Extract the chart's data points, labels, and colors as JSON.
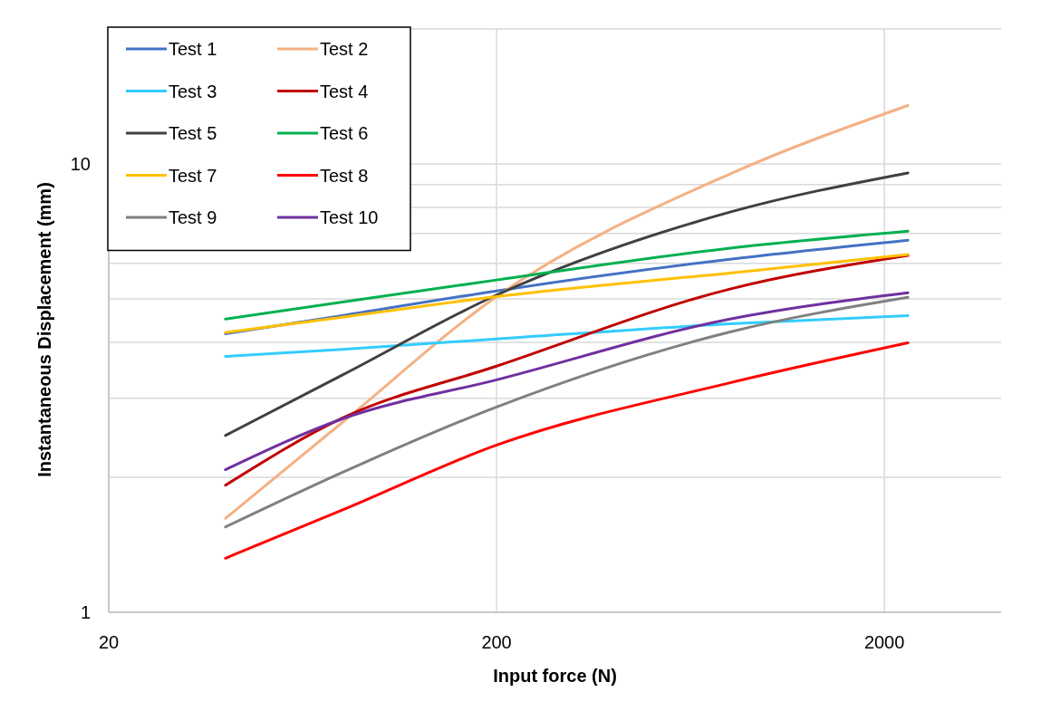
{
  "chart_data": {
    "type": "line",
    "xlabel": "Input force (N)",
    "ylabel": "Instantaneous Displacement (mm)",
    "log": "xy",
    "xlim": [
      20,
      4000
    ],
    "ylim": [
      1,
      20
    ],
    "xticks": [
      20,
      200,
      2000
    ],
    "yticks": [
      1,
      {
        "value": 2,
        "label": null
      },
      {
        "value": 3,
        "label": null
      },
      {
        "value": 4,
        "label": null
      },
      {
        "value": 5,
        "label": null
      },
      {
        "value": 6,
        "label": null
      },
      {
        "value": 7,
        "label": null
      },
      {
        "value": 8,
        "label": null
      },
      {
        "value": 9,
        "label": null
      },
      10,
      {
        "value": 20,
        "label": null
      }
    ],
    "grid": true,
    "legend": "top left",
    "marker": "none",
    "line_style": "solid",
    "x": [
      40,
      80,
      200,
      800,
      2300
    ],
    "series": [
      {
        "name": "Test 1",
        "color": "#4472c4",
        "values": [
          4.18,
          4.59,
          5.21,
          6.13,
          6.76
        ]
      },
      {
        "name": "Test 2",
        "color": "#f4b183",
        "values": [
          1.62,
          2.65,
          5.06,
          9.5,
          13.5
        ]
      },
      {
        "name": "Test 3",
        "color": "#33ccff",
        "values": [
          3.72,
          3.86,
          4.07,
          4.4,
          4.59
        ]
      },
      {
        "name": "Test 4",
        "color": "#c00000",
        "values": [
          1.92,
          2.71,
          3.54,
          5.26,
          6.25
        ]
      },
      {
        "name": "Test 5",
        "color": "#404040",
        "values": [
          2.48,
          3.38,
          5.1,
          7.81,
          9.55
        ]
      },
      {
        "name": "Test 6",
        "color": "#00b050",
        "values": [
          4.51,
          4.92,
          5.51,
          6.49,
          7.08
        ]
      },
      {
        "name": "Test 7",
        "color": "#ffc000",
        "values": [
          4.21,
          4.55,
          5.06,
          5.71,
          6.28
        ]
      },
      {
        "name": "Test 8",
        "color": "#ff0000",
        "values": [
          1.32,
          1.69,
          2.36,
          3.25,
          3.99
        ]
      },
      {
        "name": "Test 9",
        "color": "#808080",
        "values": [
          1.55,
          2.05,
          2.87,
          4.22,
          5.04
        ]
      },
      {
        "name": "Test 10",
        "color": "#7030a0",
        "values": [
          2.08,
          2.7,
          3.3,
          4.51,
          5.16
        ]
      }
    ]
  }
}
